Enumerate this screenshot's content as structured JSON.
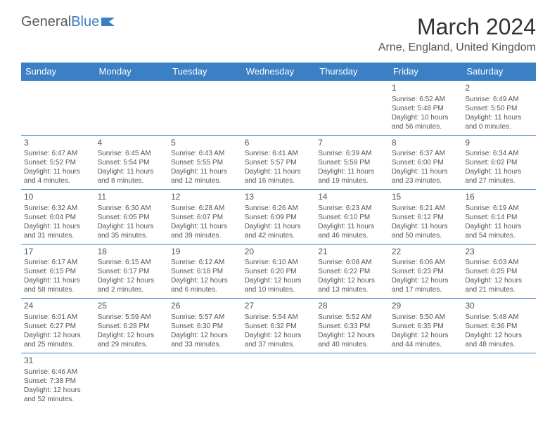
{
  "logo": {
    "text1": "General",
    "text2": "Blue"
  },
  "title": "March 2024",
  "location": "Arne, England, United Kingdom",
  "colors": {
    "header_bg": "#3b7fc4",
    "header_text": "#ffffff",
    "border": "#3b7fc4",
    "text": "#555555",
    "title": "#333333"
  },
  "daynames": [
    "Sunday",
    "Monday",
    "Tuesday",
    "Wednesday",
    "Thursday",
    "Friday",
    "Saturday"
  ],
  "weeks": [
    [
      null,
      null,
      null,
      null,
      null,
      {
        "n": "1",
        "sunrise": "Sunrise: 6:52 AM",
        "sunset": "Sunset: 5:48 PM",
        "daylight": "Daylight: 10 hours and 56 minutes."
      },
      {
        "n": "2",
        "sunrise": "Sunrise: 6:49 AM",
        "sunset": "Sunset: 5:50 PM",
        "daylight": "Daylight: 11 hours and 0 minutes."
      }
    ],
    [
      {
        "n": "3",
        "sunrise": "Sunrise: 6:47 AM",
        "sunset": "Sunset: 5:52 PM",
        "daylight": "Daylight: 11 hours and 4 minutes."
      },
      {
        "n": "4",
        "sunrise": "Sunrise: 6:45 AM",
        "sunset": "Sunset: 5:54 PM",
        "daylight": "Daylight: 11 hours and 8 minutes."
      },
      {
        "n": "5",
        "sunrise": "Sunrise: 6:43 AM",
        "sunset": "Sunset: 5:55 PM",
        "daylight": "Daylight: 11 hours and 12 minutes."
      },
      {
        "n": "6",
        "sunrise": "Sunrise: 6:41 AM",
        "sunset": "Sunset: 5:57 PM",
        "daylight": "Daylight: 11 hours and 16 minutes."
      },
      {
        "n": "7",
        "sunrise": "Sunrise: 6:39 AM",
        "sunset": "Sunset: 5:59 PM",
        "daylight": "Daylight: 11 hours and 19 minutes."
      },
      {
        "n": "8",
        "sunrise": "Sunrise: 6:37 AM",
        "sunset": "Sunset: 6:00 PM",
        "daylight": "Daylight: 11 hours and 23 minutes."
      },
      {
        "n": "9",
        "sunrise": "Sunrise: 6:34 AM",
        "sunset": "Sunset: 6:02 PM",
        "daylight": "Daylight: 11 hours and 27 minutes."
      }
    ],
    [
      {
        "n": "10",
        "sunrise": "Sunrise: 6:32 AM",
        "sunset": "Sunset: 6:04 PM",
        "daylight": "Daylight: 11 hours and 31 minutes."
      },
      {
        "n": "11",
        "sunrise": "Sunrise: 6:30 AM",
        "sunset": "Sunset: 6:05 PM",
        "daylight": "Daylight: 11 hours and 35 minutes."
      },
      {
        "n": "12",
        "sunrise": "Sunrise: 6:28 AM",
        "sunset": "Sunset: 6:07 PM",
        "daylight": "Daylight: 11 hours and 39 minutes."
      },
      {
        "n": "13",
        "sunrise": "Sunrise: 6:26 AM",
        "sunset": "Sunset: 6:09 PM",
        "daylight": "Daylight: 11 hours and 42 minutes."
      },
      {
        "n": "14",
        "sunrise": "Sunrise: 6:23 AM",
        "sunset": "Sunset: 6:10 PM",
        "daylight": "Daylight: 11 hours and 46 minutes."
      },
      {
        "n": "15",
        "sunrise": "Sunrise: 6:21 AM",
        "sunset": "Sunset: 6:12 PM",
        "daylight": "Daylight: 11 hours and 50 minutes."
      },
      {
        "n": "16",
        "sunrise": "Sunrise: 6:19 AM",
        "sunset": "Sunset: 6:14 PM",
        "daylight": "Daylight: 11 hours and 54 minutes."
      }
    ],
    [
      {
        "n": "17",
        "sunrise": "Sunrise: 6:17 AM",
        "sunset": "Sunset: 6:15 PM",
        "daylight": "Daylight: 11 hours and 58 minutes."
      },
      {
        "n": "18",
        "sunrise": "Sunrise: 6:15 AM",
        "sunset": "Sunset: 6:17 PM",
        "daylight": "Daylight: 12 hours and 2 minutes."
      },
      {
        "n": "19",
        "sunrise": "Sunrise: 6:12 AM",
        "sunset": "Sunset: 6:18 PM",
        "daylight": "Daylight: 12 hours and 6 minutes."
      },
      {
        "n": "20",
        "sunrise": "Sunrise: 6:10 AM",
        "sunset": "Sunset: 6:20 PM",
        "daylight": "Daylight: 12 hours and 10 minutes."
      },
      {
        "n": "21",
        "sunrise": "Sunrise: 6:08 AM",
        "sunset": "Sunset: 6:22 PM",
        "daylight": "Daylight: 12 hours and 13 minutes."
      },
      {
        "n": "22",
        "sunrise": "Sunrise: 6:06 AM",
        "sunset": "Sunset: 6:23 PM",
        "daylight": "Daylight: 12 hours and 17 minutes."
      },
      {
        "n": "23",
        "sunrise": "Sunrise: 6:03 AM",
        "sunset": "Sunset: 6:25 PM",
        "daylight": "Daylight: 12 hours and 21 minutes."
      }
    ],
    [
      {
        "n": "24",
        "sunrise": "Sunrise: 6:01 AM",
        "sunset": "Sunset: 6:27 PM",
        "daylight": "Daylight: 12 hours and 25 minutes."
      },
      {
        "n": "25",
        "sunrise": "Sunrise: 5:59 AM",
        "sunset": "Sunset: 6:28 PM",
        "daylight": "Daylight: 12 hours and 29 minutes."
      },
      {
        "n": "26",
        "sunrise": "Sunrise: 5:57 AM",
        "sunset": "Sunset: 6:30 PM",
        "daylight": "Daylight: 12 hours and 33 minutes."
      },
      {
        "n": "27",
        "sunrise": "Sunrise: 5:54 AM",
        "sunset": "Sunset: 6:32 PM",
        "daylight": "Daylight: 12 hours and 37 minutes."
      },
      {
        "n": "28",
        "sunrise": "Sunrise: 5:52 AM",
        "sunset": "Sunset: 6:33 PM",
        "daylight": "Daylight: 12 hours and 40 minutes."
      },
      {
        "n": "29",
        "sunrise": "Sunrise: 5:50 AM",
        "sunset": "Sunset: 6:35 PM",
        "daylight": "Daylight: 12 hours and 44 minutes."
      },
      {
        "n": "30",
        "sunrise": "Sunrise: 5:48 AM",
        "sunset": "Sunset: 6:36 PM",
        "daylight": "Daylight: 12 hours and 48 minutes."
      }
    ],
    [
      {
        "n": "31",
        "sunrise": "Sunrise: 6:46 AM",
        "sunset": "Sunset: 7:38 PM",
        "daylight": "Daylight: 12 hours and 52 minutes."
      },
      null,
      null,
      null,
      null,
      null,
      null
    ]
  ]
}
